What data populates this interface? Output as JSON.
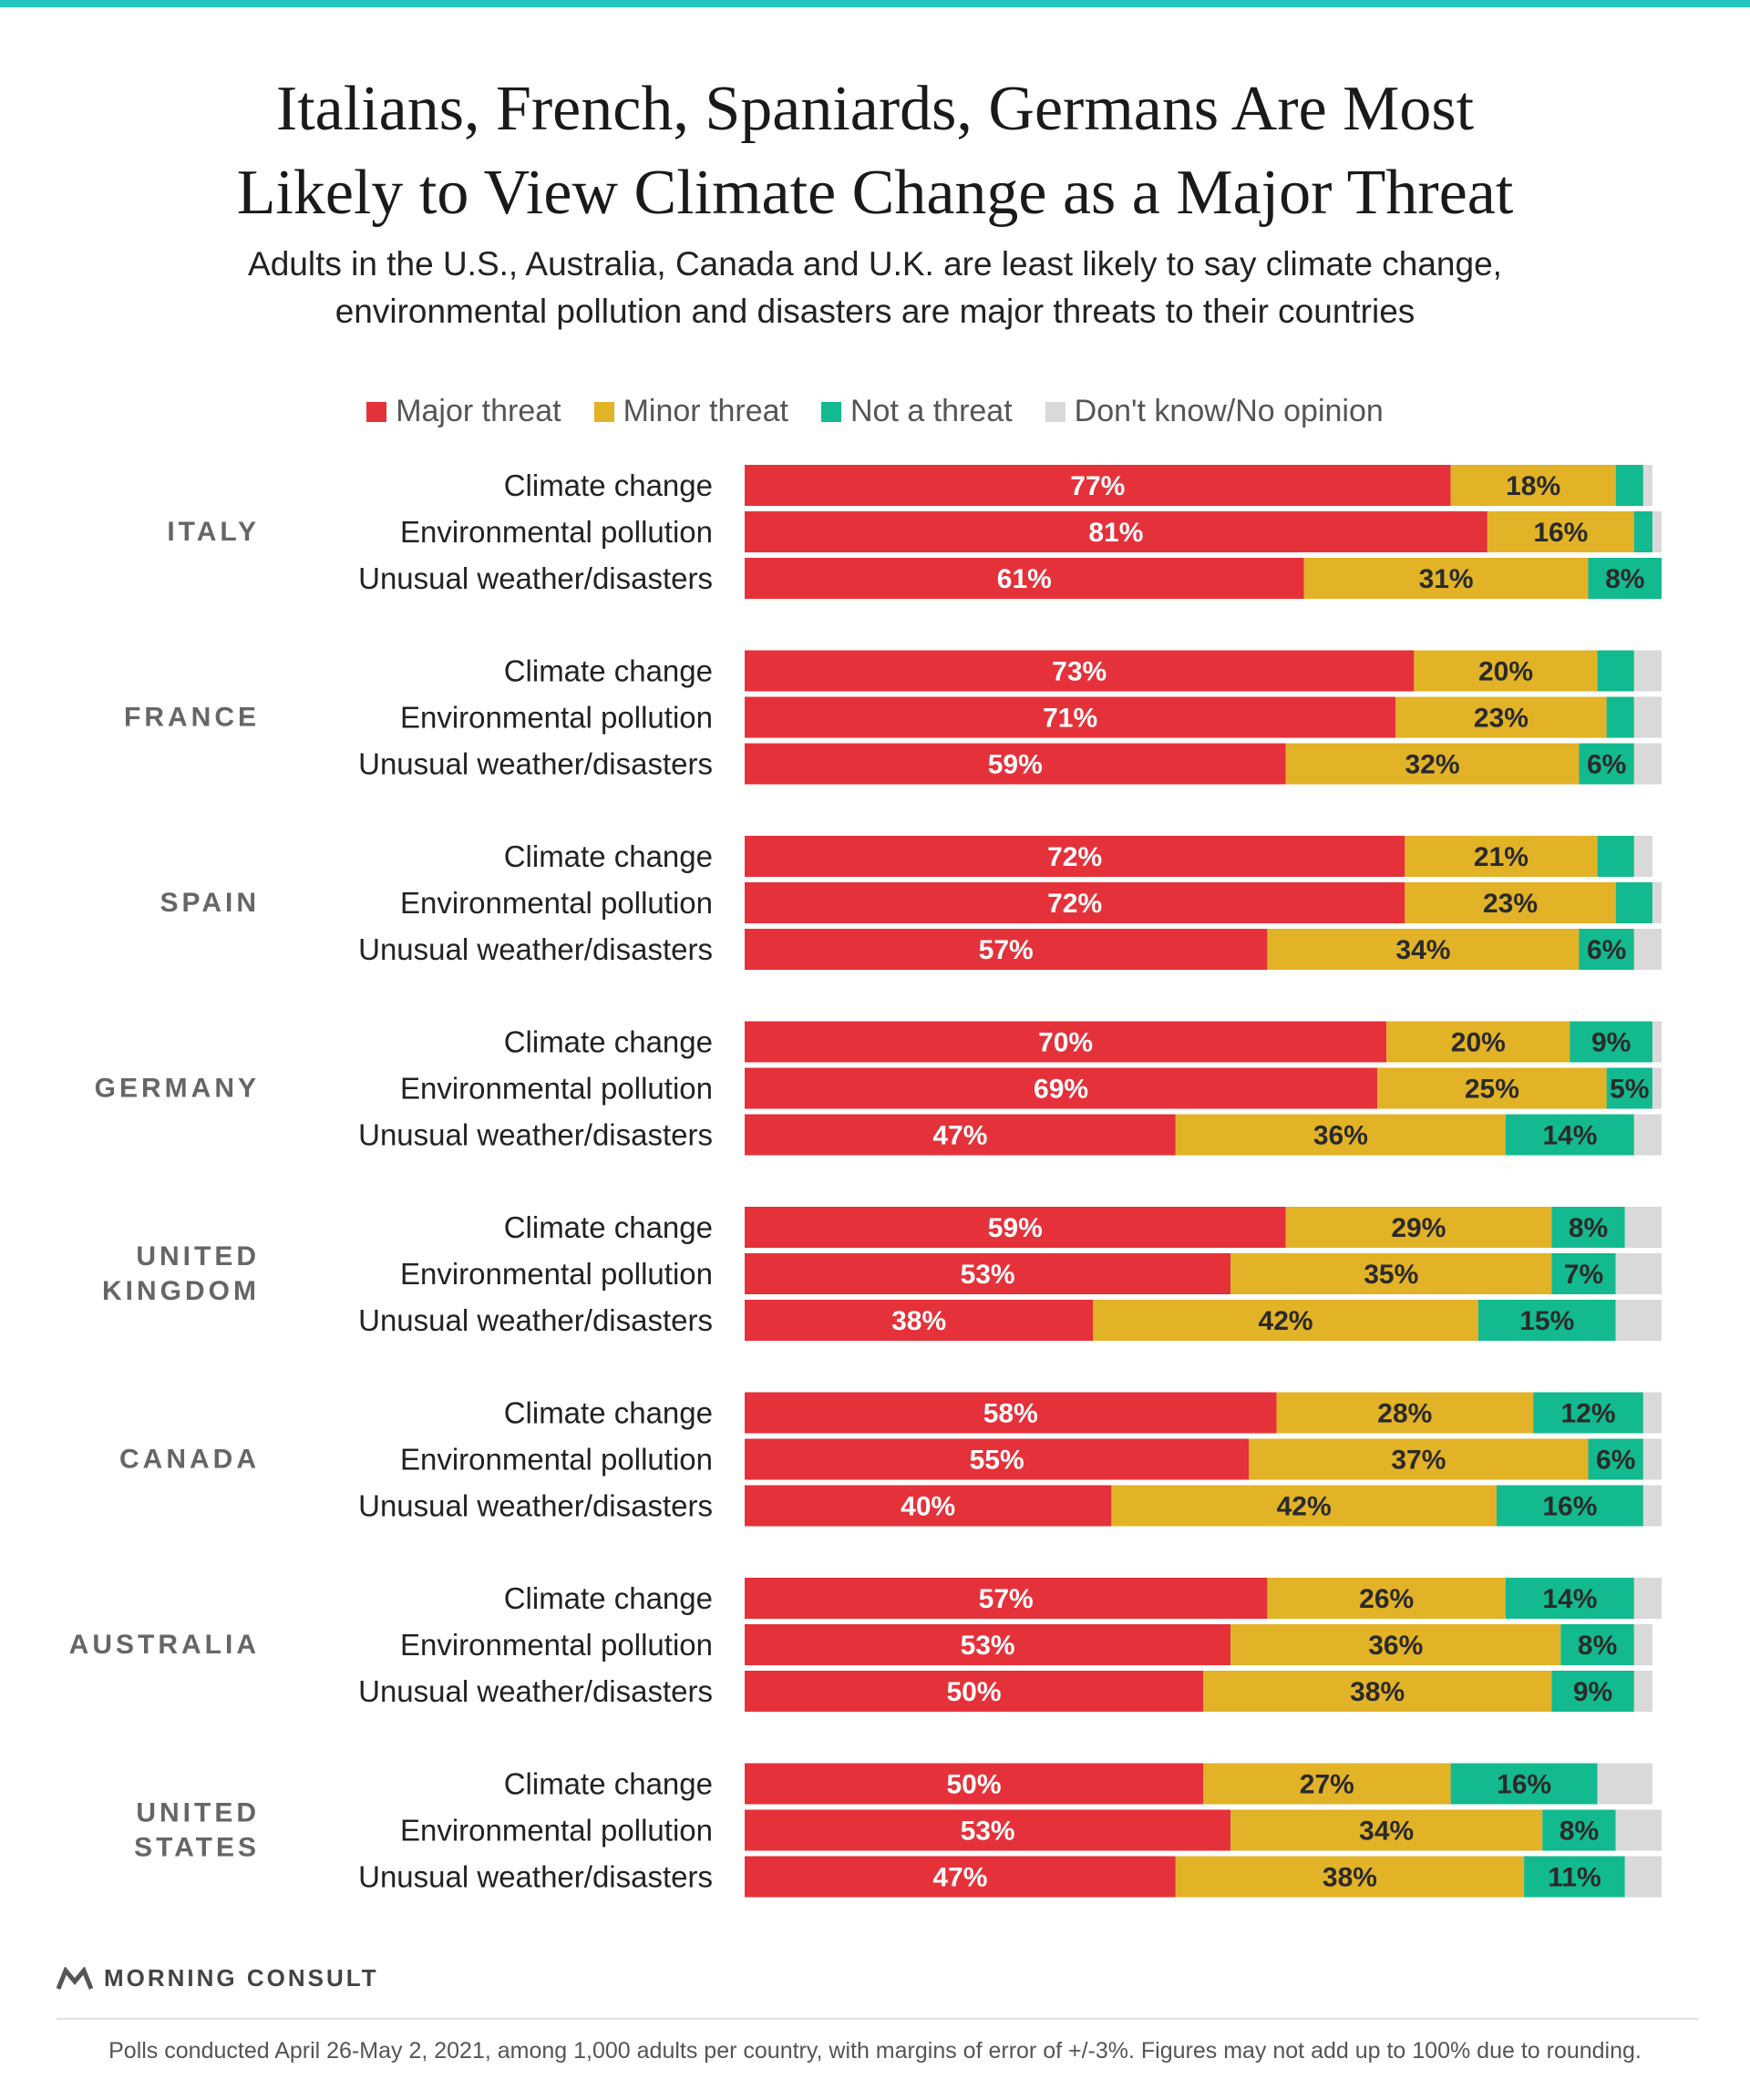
{
  "title_line1": "Italians, French, Spaniards, Germans Are Most",
  "title_line2": "Likely to View Climate Change as a Major Threat",
  "subtitle_line1": "Adults in the U.S., Australia, Canada and U.K. are least likely to say climate change,",
  "subtitle_line2": "environmental pollution and disasters are major threats to their countries",
  "brand": "MORNING CONSULT",
  "footnote": "Polls conducted April 26-May 2, 2021, among 1,000 adults per country, with margins of error of +/-3%. Figures may not add up to 100% due to rounding.",
  "colors": {
    "major": "#e5313a",
    "minor": "#e2b227",
    "not": "#13b98f",
    "dk": "#d9d9d9",
    "brand_icon": "#555555"
  },
  "icons": {
    "brand": "morning-consult-logo-icon"
  },
  "chart_data": {
    "type": "bar",
    "orientation": "horizontal",
    "stacked": true,
    "xlim": [
      0,
      100
    ],
    "legend": {
      "placement": "top",
      "entries": [
        "Major threat",
        "Minor threat",
        "Not a threat",
        "Don't know/No opinion"
      ]
    },
    "groups": [
      {
        "country": [
          "ITALY"
        ],
        "rows": [
          {
            "label": "Climate change",
            "values": [
              77,
              18,
              3,
              1
            ],
            "labels": [
              "77%",
              "18%",
              "",
              ""
            ]
          },
          {
            "label": "Environmental pollution",
            "values": [
              81,
              16,
              2,
              1
            ],
            "labels": [
              "81%",
              "16%",
              "",
              ""
            ]
          },
          {
            "label": "Unusual weather/disasters",
            "values": [
              61,
              31,
              8,
              1
            ],
            "labels": [
              "61%",
              "31%",
              "8%",
              ""
            ]
          }
        ]
      },
      {
        "country": [
          "FRANCE"
        ],
        "rows": [
          {
            "label": "Climate change",
            "values": [
              73,
              20,
              4,
              3
            ],
            "labels": [
              "73%",
              "20%",
              "",
              ""
            ]
          },
          {
            "label": "Environmental pollution",
            "values": [
              71,
              23,
              3,
              3
            ],
            "labels": [
              "71%",
              "23%",
              "",
              ""
            ]
          },
          {
            "label": "Unusual weather/disasters",
            "values": [
              59,
              32,
              6,
              3
            ],
            "labels": [
              "59%",
              "32%",
              "6%",
              ""
            ]
          }
        ]
      },
      {
        "country": [
          "SPAIN"
        ],
        "rows": [
          {
            "label": "Climate change",
            "values": [
              72,
              21,
              4,
              2
            ],
            "labels": [
              "72%",
              "21%",
              "",
              ""
            ]
          },
          {
            "label": "Environmental pollution",
            "values": [
              72,
              23,
              4,
              2
            ],
            "labels": [
              "72%",
              "23%",
              "",
              ""
            ]
          },
          {
            "label": "Unusual weather/disasters",
            "values": [
              57,
              34,
              6,
              3
            ],
            "labels": [
              "57%",
              "34%",
              "6%",
              ""
            ]
          }
        ]
      },
      {
        "country": [
          "GERMANY"
        ],
        "rows": [
          {
            "label": "Climate change",
            "values": [
              70,
              20,
              9,
              2
            ],
            "labels": [
              "70%",
              "20%",
              "9%",
              ""
            ]
          },
          {
            "label": "Environmental pollution",
            "values": [
              69,
              25,
              5,
              2
            ],
            "labels": [
              "69%",
              "25%",
              "5%",
              ""
            ]
          },
          {
            "label": "Unusual weather/disasters",
            "values": [
              47,
              36,
              14,
              3
            ],
            "labels": [
              "47%",
              "36%",
              "14%",
              ""
            ]
          }
        ]
      },
      {
        "country": [
          "UNITED",
          "KINGDOM"
        ],
        "rows": [
          {
            "label": "Climate change",
            "values": [
              59,
              29,
              8,
              5
            ],
            "labels": [
              "59%",
              "29%",
              "8%",
              ""
            ]
          },
          {
            "label": "Environmental pollution",
            "values": [
              53,
              35,
              7,
              5
            ],
            "labels": [
              "53%",
              "35%",
              "7%",
              ""
            ]
          },
          {
            "label": "Unusual weather/disasters",
            "values": [
              38,
              42,
              15,
              5
            ],
            "labels": [
              "38%",
              "42%",
              "15%",
              ""
            ]
          }
        ]
      },
      {
        "country": [
          "CANADA"
        ],
        "rows": [
          {
            "label": "Climate change",
            "values": [
              58,
              28,
              12,
              2
            ],
            "labels": [
              "58%",
              "28%",
              "12%",
              ""
            ]
          },
          {
            "label": "Environmental pollution",
            "values": [
              55,
              37,
              6,
              2
            ],
            "labels": [
              "55%",
              "37%",
              "6%",
              ""
            ]
          },
          {
            "label": "Unusual weather/disasters",
            "values": [
              40,
              42,
              16,
              3
            ],
            "labels": [
              "40%",
              "42%",
              "16%",
              ""
            ]
          }
        ]
      },
      {
        "country": [
          "AUSTRALIA"
        ],
        "rows": [
          {
            "label": "Climate change",
            "values": [
              57,
              26,
              14,
              3
            ],
            "labels": [
              "57%",
              "26%",
              "14%",
              ""
            ]
          },
          {
            "label": "Environmental pollution",
            "values": [
              53,
              36,
              8,
              2
            ],
            "labels": [
              "53%",
              "36%",
              "8%",
              ""
            ]
          },
          {
            "label": "Unusual weather/disasters",
            "values": [
              50,
              38,
              9,
              2
            ],
            "labels": [
              "50%",
              "38%",
              "9%",
              ""
            ]
          }
        ]
      },
      {
        "country": [
          "UNITED",
          "STATES"
        ],
        "rows": [
          {
            "label": "Climate change",
            "values": [
              50,
              27,
              16,
              6
            ],
            "labels": [
              "50%",
              "27%",
              "16%",
              ""
            ]
          },
          {
            "label": "Environmental pollution",
            "values": [
              53,
              34,
              8,
              6
            ],
            "labels": [
              "53%",
              "34%",
              "8%",
              ""
            ]
          },
          {
            "label": "Unusual weather/disasters",
            "values": [
              47,
              38,
              11,
              5
            ],
            "labels": [
              "47%",
              "38%",
              "11%",
              ""
            ]
          }
        ]
      }
    ]
  }
}
